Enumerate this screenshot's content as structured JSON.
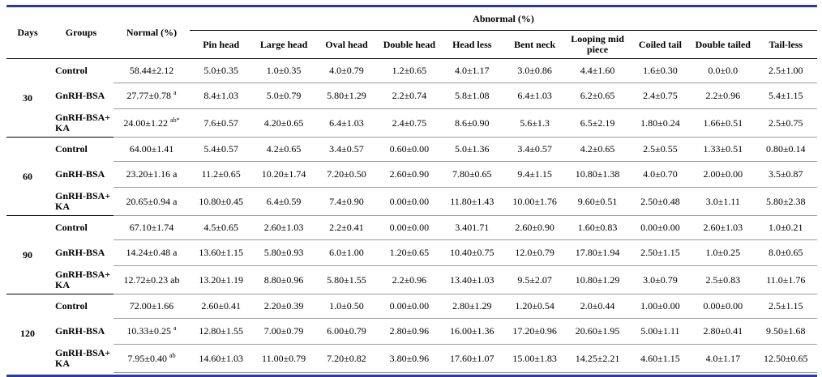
{
  "header": {
    "days": "Days",
    "groups": "Groups",
    "normal": "Normal (%)",
    "abnormal": "Abnormal (%)",
    "columns": [
      "Pin head",
      "Large head",
      "Oval head",
      "Double head",
      "Head less",
      "Bent neck",
      "Looping mid piece",
      "Coiled tail",
      "Double tailed",
      "Tail-less"
    ]
  },
  "blocks": [
    {
      "day": "30",
      "rows": [
        {
          "group": "Control",
          "normal": "58.44±2.12",
          "sup": "",
          "values": [
            "5.0±0.35",
            "1.0±0.35",
            "4.0±0.79",
            "1.2±0.65",
            "4.0±1.17",
            "3.0±0.86",
            "4.4±1.60",
            "1.6±0.30",
            "0.0±0.0",
            "2.5±1.00"
          ]
        },
        {
          "group": "GnRH-BSA",
          "normal": "27.77±0.78",
          "sup": "a",
          "values": [
            "8.4±1.03",
            "5.0±0.79",
            "5.80±1.29",
            "2.2±0.74",
            "5.8±1.08",
            "6.4±1.03",
            "6.2±0.65",
            "2.4±0.75",
            "2.2±0.96",
            "5.4±1.15"
          ]
        },
        {
          "group": "GnRH-BSA+ KA",
          "normal": "24.00±1.22",
          "sup": "ab*",
          "values": [
            "7.6±0.57",
            "4.20±0.65",
            "6.4±1.03",
            "2.4±0.75",
            "8.6±0.90",
            "5.6±1.3",
            "6.5±2.19",
            "1.80±0.24",
            "1.66±0.51",
            "2.5±0.75"
          ]
        }
      ]
    },
    {
      "day": "60",
      "rows": [
        {
          "group": "Control",
          "normal": "64.00±1.41",
          "sup": "",
          "values": [
            "5.4±0.57",
            "4.2±0.65",
            "3.4±0.57",
            "0.60±0.00",
            "5.0±1.36",
            "3.4±0.57",
            "4.2±0.65",
            "2.5±0.55",
            "1.33±0.51",
            "0.80±0.14"
          ]
        },
        {
          "group": "GnRH-BSA",
          "normal": "23.20±1.16 a",
          "sup": "",
          "values": [
            "11.2±0.65",
            "10.20±1.74",
            "7.20±0.50",
            "2.60±0.90",
            "7.80±0.65",
            "9.4±1.15",
            "10.80±1.38",
            "4.0±0.70",
            "2.00±0.00",
            "3.5±0.87"
          ]
        },
        {
          "group": "GnRH-BSA+ KA",
          "normal": "20.65±0.94 a",
          "sup": "",
          "values": [
            "10.80±0.45",
            "6.4±0.59",
            "7.4±0.90",
            "0.00±0.00",
            "11.80±1.43",
            "10.00±1.76",
            "9.60±0.51",
            "2.50±0.48",
            "3.0±1.11",
            "5.80±2.38"
          ]
        }
      ]
    },
    {
      "day": "90",
      "rows": [
        {
          "group": "Control",
          "normal": "67.10±1.74",
          "sup": "",
          "values": [
            "4.5±0.65",
            "2.60±1.03",
            "2.2±0.41",
            "0.00±0.00",
            "3.401.71",
            "2.60±0.90",
            "1.60±0.83",
            "0.00±0.00",
            "2.60±1.03",
            "1.0±0.21"
          ]
        },
        {
          "group": "GnRH-BSA",
          "normal": "14.24±0.48 a",
          "sup": "",
          "values": [
            "13.60±1.15",
            "5.80±0.93",
            "6.0±1.00",
            "1.20±0.65",
            "10.40±0.75",
            "12.0±0.79",
            "17.80±1.94",
            "2.50±1.15",
            "1.0±0.25",
            "8.0±0.65"
          ]
        },
        {
          "group": "GnRH-BSA+ KA",
          "normal": "12.72±0.23 ab",
          "sup": "",
          "values": [
            "13.20±1.19",
            "8.80±0.96",
            "5.80±1.55",
            "2.2±0.96",
            "13.40±1.03",
            "9.5±2.07",
            "10.80±1.29",
            "3.0±0.79",
            "2.5±0.83",
            "11.0±1.76"
          ]
        }
      ]
    },
    {
      "day": "120",
      "rows": [
        {
          "group": "Control",
          "normal": "72.00±1.66",
          "sup": "",
          "values": [
            "2.60±0.41",
            "2.20±0.39",
            "1.0±0.50",
            "0.00±0.00",
            "2.80±1.29",
            "1.20±0.54",
            "2.0±0.44",
            "1.00±0.00",
            "0.00±0.00",
            "2.5±1.15"
          ]
        },
        {
          "group": "GnRH-BSA",
          "normal": "10.33±0.25",
          "sup": "a",
          "values": [
            "12.80±1.55",
            "7.00±0.79",
            "6.00±0.79",
            "2.80±0.96",
            "16.00±1.36",
            "17.20±0.96",
            "20.60±1.95",
            "5.00±1.11",
            "2.80±0.41",
            "9.50±1.68"
          ]
        },
        {
          "group": "GnRH-BSA+ KA",
          "normal": "7.95±0.40",
          "sup": "ab",
          "values": [
            "14.60±1.03",
            "11.00±0.79",
            "7.20±0.82",
            "3.80±0.96",
            "17.60±1.07",
            "15.00±1.83",
            "14.25±2.21",
            "4.60±1.15",
            "4.0±1.17",
            "12.50±0.65"
          ]
        }
      ]
    }
  ]
}
